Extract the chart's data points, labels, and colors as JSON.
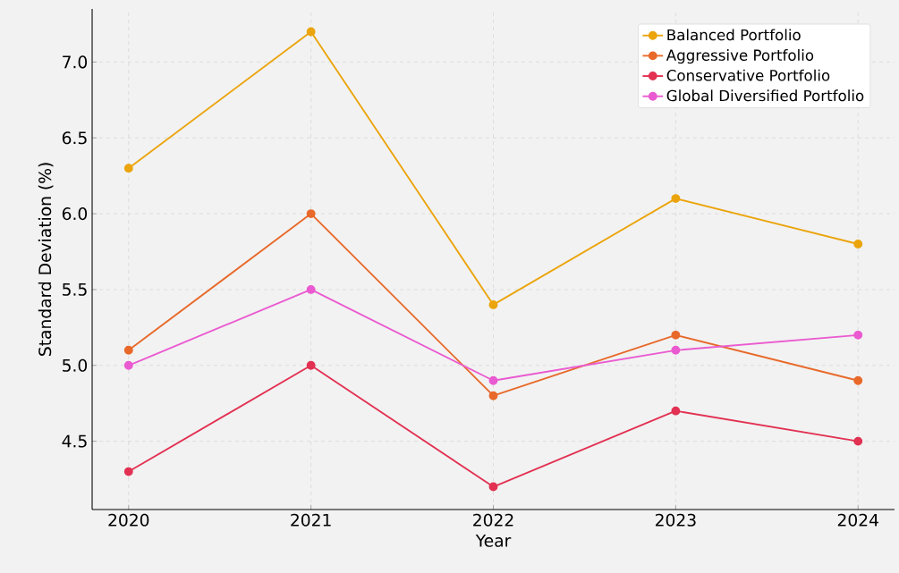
{
  "chart_data": {
    "type": "line",
    "xlabel": "Year",
    "ylabel": "Standard Deviation (%)",
    "x": [
      2020,
      2021,
      2022,
      2023,
      2024
    ],
    "series": [
      {
        "name": "Balanced Portfolio",
        "color": "#eba40c",
        "values": [
          6.3,
          7.2,
          5.4,
          6.1,
          5.8
        ]
      },
      {
        "name": "Aggressive Portfolio",
        "color": "#e8692a",
        "values": [
          5.1,
          6.0,
          4.8,
          5.2,
          4.9
        ]
      },
      {
        "name": "Conservative Portfolio",
        "color": "#e23152",
        "values": [
          4.3,
          5.0,
          4.2,
          4.7,
          4.5
        ]
      },
      {
        "name": "Global Diversified Portfolio",
        "color": "#ea5ad0",
        "values": [
          5.0,
          5.5,
          4.9,
          5.1,
          5.2
        ]
      }
    ],
    "xlim": [
      2019.8,
      2024.2
    ],
    "ylim": [
      4.05,
      7.35
    ],
    "xticks": [
      2020,
      2021,
      2022,
      2023,
      2024
    ],
    "yticks": [
      4.5,
      {
        "value": 5,
        "label": "5.0"
      },
      5.5,
      {
        "value": 6,
        "label": "6.0"
      },
      6.5,
      {
        "value": 7,
        "label": "7.0"
      }
    ],
    "grid": true,
    "legend": "top right",
    "marker": "circle",
    "line_style": "solid"
  }
}
